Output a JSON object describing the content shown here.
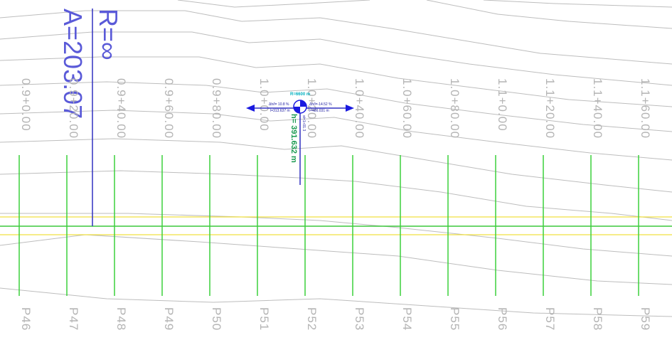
{
  "alignment": {
    "radius_label": "R=∞",
    "parameter_label": "A=203.07"
  },
  "stations": [
    "0.9+0.00",
    "0.9+20.00",
    "0.9+40.00",
    "0.9+60.00",
    "0.9+80.00",
    "1.0+0.00",
    "1.0+20.00",
    "1.0+40.00",
    "1.0+60.00",
    "1.0+80.00",
    "1.1+0.00",
    "1.1+20.00",
    "1.1+40.00",
    "1.1+60.00"
  ],
  "profiles": [
    "P46",
    "P47",
    "P48",
    "P49",
    "P50",
    "P51",
    "P52",
    "P53",
    "P54",
    "P55",
    "P56",
    "P57",
    "P58",
    "P59"
  ],
  "vertical_curve": {
    "radius": "R=6600 m",
    "grade_in": "Δh/l= 10.8 %",
    "length_in": "l=313.637 m",
    "grade_out": "Δh/l=-14.52 %",
    "length_out": "l=486.031 m",
    "elevation": "h= 391.632 m",
    "station": "st=1+01.3"
  }
}
